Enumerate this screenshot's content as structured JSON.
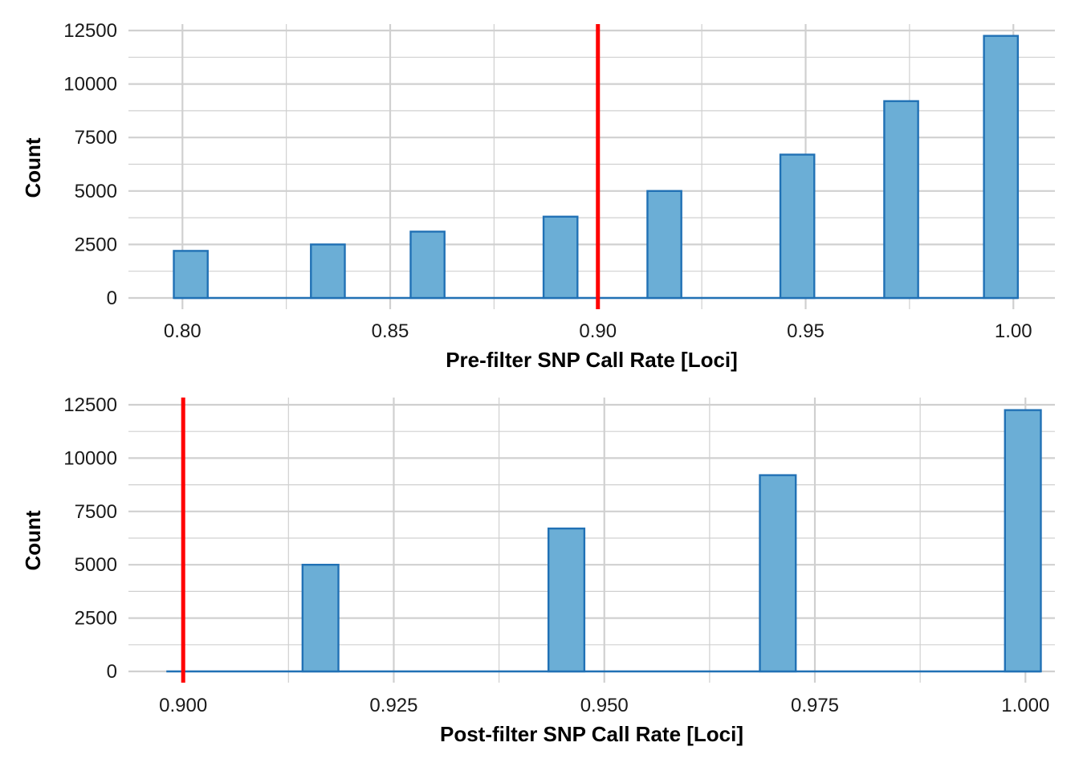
{
  "chart_data": [
    {
      "type": "bar",
      "xlabel": "Pre-filter SNP Call Rate [Loci]",
      "ylabel": "Count",
      "xlim": [
        0.787,
        1.01
      ],
      "ylim": [
        0,
        12500
      ],
      "x_ticks": [
        0.8,
        0.85,
        0.9,
        0.95,
        1.0
      ],
      "x_tick_labels": [
        "0.80",
        "0.85",
        "0.90",
        "0.95",
        "1.00"
      ],
      "y_ticks": [
        0,
        2500,
        5000,
        7500,
        10000,
        12500
      ],
      "y_tick_labels": [
        "0",
        "2500",
        "5000",
        "7500",
        "10000",
        "12500"
      ],
      "bin_width": 0.00816,
      "bins": [
        {
          "x": 0.802,
          "count": 2200
        },
        {
          "x": 0.835,
          "count": 2500
        },
        {
          "x": 0.859,
          "count": 3100
        },
        {
          "x": 0.891,
          "count": 3800
        },
        {
          "x": 0.916,
          "count": 5000
        },
        {
          "x": 0.948,
          "count": 6700
        },
        {
          "x": 0.973,
          "count": 9200
        },
        {
          "x": 0.997,
          "count": 12250
        }
      ],
      "threshold": 0.9,
      "grid": true,
      "colors": {
        "fill": "#6baed6",
        "stroke": "#2171b5",
        "threshold": "#ff0000",
        "grid": "#d0d0d0"
      }
    },
    {
      "type": "bar",
      "xlabel": "Post-filter SNP Call Rate [Loci]",
      "ylabel": "Count",
      "xlim": [
        0.8935,
        1.0035
      ],
      "ylim": [
        0,
        12500
      ],
      "x_ticks": [
        0.9,
        0.925,
        0.95,
        0.975,
        1.0
      ],
      "x_tick_labels": [
        "0.900",
        "0.925",
        "0.950",
        "0.975",
        "1.000"
      ],
      "y_ticks": [
        0,
        2500,
        5000,
        7500,
        10000,
        12500
      ],
      "y_tick_labels": [
        "0",
        "2500",
        "5000",
        "7500",
        "10000",
        "12500"
      ],
      "bin_width": 0.00426,
      "bins": [
        {
          "x": 0.9163,
          "count": 5000
        },
        {
          "x": 0.9455,
          "count": 6700
        },
        {
          "x": 0.9706,
          "count": 9200
        },
        {
          "x": 0.9997,
          "count": 12250
        }
      ],
      "baseline_start": 0.898,
      "threshold": 0.9,
      "grid": true,
      "colors": {
        "fill": "#6baed6",
        "stroke": "#2171b5",
        "threshold": "#ff0000",
        "grid": "#d0d0d0"
      }
    }
  ]
}
